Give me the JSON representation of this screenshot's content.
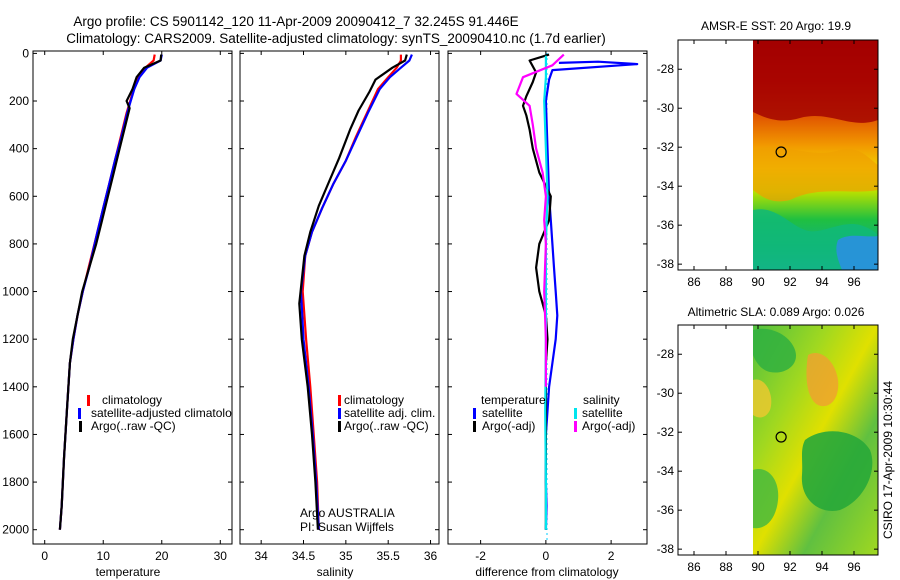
{
  "header": {
    "line1": "Argo profile: CS 5901142_120 11-Apr-2009 20090412_7 32.245S 91.446E",
    "line2": "Climatology: CARS2009. Satellite-adjusted climatology: synTS_20090410.nc (1.7d earlier)"
  },
  "side_label": "CSIRO 17-Apr-2009 10:30:44",
  "colors": {
    "climatology": "#ff0000",
    "satellite": "#0000ff",
    "argo": "#000000",
    "sal_satellite": "#00e5ee",
    "sal_argo": "#ff00ff",
    "zero_line": "#00ccff"
  },
  "chart_data": [
    {
      "type": "line",
      "panel": "temperature",
      "xlabel": "temperature",
      "ylabel": "",
      "xlim": [
        -2,
        32
      ],
      "ylim": [
        2060,
        -10
      ],
      "y_inverted": true,
      "xticks": [
        0,
        10,
        20,
        30
      ],
      "yticks": [
        0,
        200,
        400,
        600,
        800,
        1000,
        1200,
        1400,
        1600,
        1800,
        2000
      ],
      "legend": [
        "climatology",
        "satellite-adjusted climatolo",
        "Argo(..raw -QC)"
      ],
      "series": [
        {
          "name": "climatology",
          "color_key": "climatology",
          "x": [
            18.8,
            18.6,
            17.2,
            16.0,
            15.2,
            14.6,
            14.0,
            13.0,
            12.0,
            11.0,
            10.0,
            9.0,
            7.5,
            6.5,
            5.6,
            4.9,
            4.3,
            3.8,
            3.3,
            2.9,
            2.6
          ],
          "y": [
            5,
            30,
            60,
            100,
            150,
            200,
            250,
            350,
            450,
            550,
            650,
            750,
            900,
            1000,
            1100,
            1200,
            1300,
            1500,
            1700,
            1900,
            2000
          ]
        },
        {
          "name": "satellite-adjusted climatolo",
          "color_key": "satellite",
          "x": [
            20.0,
            19.8,
            17.5,
            16.2,
            15.3,
            14.7,
            14.1,
            13.1,
            12.0,
            11.0,
            10.0,
            9.0,
            7.6,
            6.5,
            5.6,
            4.9,
            4.3,
            3.8,
            3.3,
            2.9,
            2.6
          ],
          "y": [
            5,
            30,
            60,
            100,
            150,
            200,
            250,
            350,
            450,
            550,
            650,
            750,
            900,
            1000,
            1100,
            1200,
            1300,
            1500,
            1700,
            1900,
            2000
          ]
        },
        {
          "name": "Argo(..raw -QC)",
          "color_key": "argo",
          "x": [
            19.9,
            19.8,
            17.0,
            15.7,
            15.0,
            14.0,
            14.5,
            13.8,
            12.8,
            11.8,
            10.8,
            9.8,
            8.8,
            7.6,
            6.4,
            5.6,
            4.8,
            4.3,
            3.8,
            3.3,
            2.9,
            2.6
          ],
          "y": [
            5,
            30,
            60,
            100,
            150,
            200,
            230,
            300,
            400,
            500,
            600,
            700,
            800,
            900,
            1000,
            1100,
            1200,
            1300,
            1500,
            1700,
            1900,
            2000
          ]
        }
      ]
    },
    {
      "type": "line",
      "panel": "salinity",
      "xlabel": "salinity",
      "ylabel": "",
      "xlim": [
        33.75,
        36.1
      ],
      "ylim": [
        2060,
        -10
      ],
      "y_inverted": true,
      "xticks": [
        34,
        34.5,
        35,
        35.5,
        36
      ],
      "legend": [
        "climatology",
        "satellite adj. clim.",
        "Argo(..raw -QC)"
      ],
      "annotation": [
        "Argo AUSTRALIA",
        "PI: Susan Wijffels"
      ],
      "series": [
        {
          "name": "climatology",
          "color_key": "climatology",
          "x": [
            35.65,
            35.65,
            35.6,
            35.5,
            35.38,
            35.25,
            35.12,
            35.0,
            34.85,
            34.72,
            34.6,
            34.52,
            34.49,
            34.53,
            34.58,
            34.62,
            34.66,
            34.68
          ],
          "y": [
            5,
            30,
            60,
            100,
            150,
            250,
            350,
            450,
            550,
            650,
            750,
            850,
            1000,
            1200,
            1400,
            1600,
            1800,
            2000
          ]
        },
        {
          "name": "satellite adj. clim.",
          "color_key": "satellite",
          "x": [
            35.78,
            35.75,
            35.65,
            35.52,
            35.4,
            35.26,
            35.13,
            35.0,
            34.85,
            34.72,
            34.6,
            34.52,
            34.47,
            34.5,
            34.56,
            34.61,
            34.65,
            34.68
          ],
          "y": [
            5,
            30,
            60,
            100,
            150,
            250,
            350,
            450,
            550,
            650,
            750,
            850,
            1000,
            1200,
            1400,
            1600,
            1800,
            2000
          ]
        },
        {
          "name": "Argo(..raw -QC)",
          "color_key": "argo",
          "x": [
            35.72,
            35.7,
            35.55,
            35.35,
            35.28,
            35.15,
            35.05,
            34.92,
            34.8,
            34.68,
            34.58,
            34.51,
            34.45,
            34.48,
            34.55,
            34.6,
            34.64,
            34.67
          ],
          "y": [
            5,
            30,
            60,
            110,
            160,
            240,
            320,
            440,
            540,
            640,
            750,
            850,
            1050,
            1200,
            1400,
            1600,
            1800,
            2000
          ]
        }
      ]
    },
    {
      "type": "line",
      "panel": "difference",
      "xlabel": "difference from climatology",
      "ylabel": "",
      "xlim": [
        -3.0,
        3.1
      ],
      "ylim": [
        2060,
        -10
      ],
      "y_inverted": true,
      "xticks": [
        -2,
        0,
        2
      ],
      "legend_headers": [
        "temperature",
        "salinity"
      ],
      "legend": [
        "satellite",
        "Argo(-adj)",
        "satellite",
        "Argo(-adj)"
      ],
      "series": [
        {
          "name": "satellite",
          "group": "temperature",
          "color_key": "satellite",
          "x": [
            0.4,
            1.6,
            2.8,
            0.2,
            0.1,
            0.0,
            0.05,
            0.1,
            0.15,
            0.2,
            0.25,
            0.3,
            0.35,
            0.3,
            0.2,
            0.1,
            0.0,
            0.0,
            0.02,
            0.0
          ],
          "y": [
            40,
            35,
            45,
            70,
            110,
            200,
            400,
            600,
            700,
            800,
            900,
            1000,
            1100,
            1200,
            1300,
            1400,
            1600,
            1800,
            1900,
            2000
          ]
        },
        {
          "name": "Argo(-adj)",
          "group": "temperature",
          "color_key": "argo",
          "x": [
            0.1,
            -0.5,
            -0.3,
            -0.4,
            -0.6,
            -0.7,
            -0.6,
            -0.5,
            -0.4,
            -0.2,
            0.15,
            0.1,
            -0.2,
            -0.3,
            -0.2,
            0.0,
            0.05,
            0.0,
            0.0,
            0.0,
            0.0
          ],
          "y": [
            5,
            30,
            80,
            120,
            180,
            220,
            260,
            320,
            400,
            500,
            600,
            700,
            800,
            900,
            1000,
            1100,
            1200,
            1300,
            1500,
            1700,
            2000
          ]
        },
        {
          "name": "satellite",
          "group": "salinity",
          "color_key": "sal_satellite",
          "x": [
            0.0,
            0.0,
            -0.05,
            0.0,
            0.05,
            0.0,
            0.0,
            0.0,
            -0.02,
            0.0,
            0.0
          ],
          "y": [
            10,
            100,
            200,
            400,
            600,
            800,
            1000,
            1200,
            1500,
            1800,
            2000
          ]
        },
        {
          "name": "Argo(-adj)",
          "group": "salinity",
          "color_key": "sal_argo",
          "x": [
            0.55,
            0.2,
            -0.7,
            -0.9,
            -0.5,
            -0.4,
            -0.3,
            -0.1,
            0.0,
            -0.05,
            0.0,
            -0.05,
            0.0,
            0.0
          ],
          "y": [
            5,
            50,
            100,
            170,
            220,
            300,
            400,
            500,
            600,
            700,
            800,
            1000,
            1200,
            1400
          ]
        }
      ]
    },
    {
      "type": "heatmap",
      "panel": "sst-map",
      "title": "AMSR-E SST: 20 Argo: 19.9",
      "xlim": [
        85,
        97.5
      ],
      "ylim": [
        -38.3,
        -26.5
      ],
      "xticks": [
        86,
        88,
        90,
        92,
        94,
        96
      ],
      "yticks": [
        -28,
        -30,
        -32,
        -34,
        -36,
        -38
      ],
      "data_lon_range": [
        90,
        97.5
      ],
      "float_position": {
        "lon": 91.446,
        "lat": -32.245
      }
    },
    {
      "type": "heatmap",
      "panel": "sla-map",
      "title": "Altimetric SLA: 0.089 Argo: 0.026",
      "xlim": [
        85,
        97.5
      ],
      "ylim": [
        -38.3,
        -26.5
      ],
      "xticks": [
        86,
        88,
        90,
        92,
        94,
        96
      ],
      "yticks": [
        -28,
        -30,
        -32,
        -34,
        -36,
        -38
      ],
      "data_lon_range": [
        90,
        97.5
      ],
      "float_position": {
        "lon": 91.446,
        "lat": -32.245
      }
    }
  ]
}
